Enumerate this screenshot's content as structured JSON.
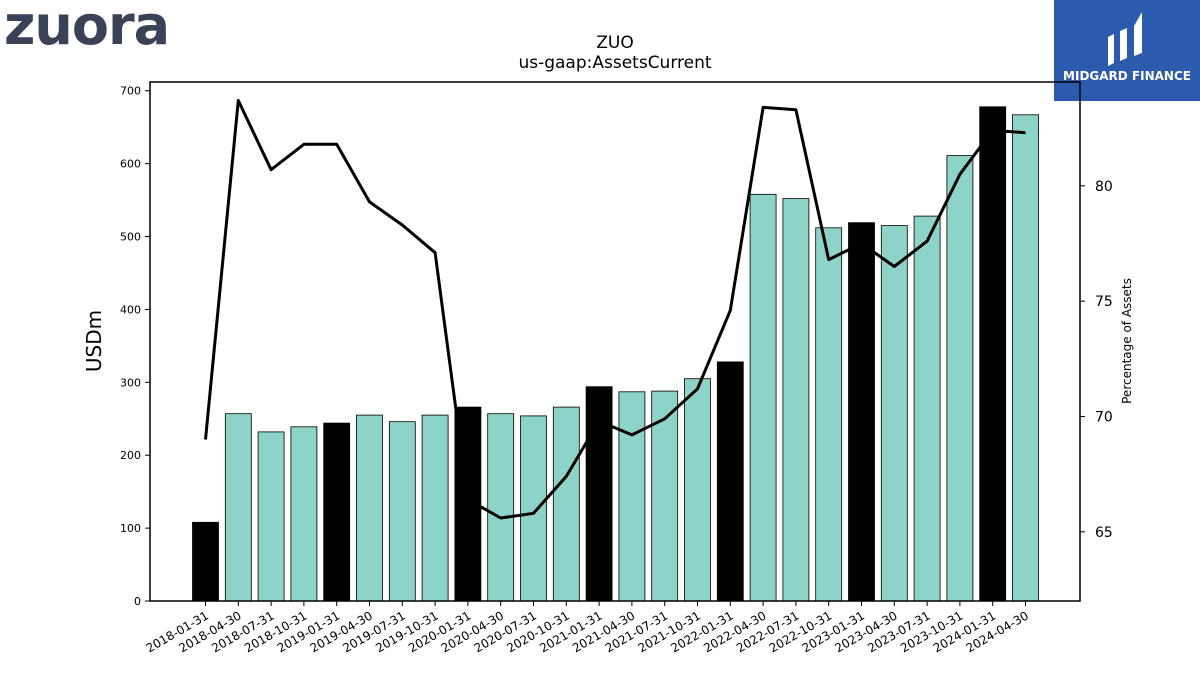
{
  "header": {
    "company_logo": "zuora",
    "brand_badge": "MIDGARD FINANCE"
  },
  "chart_data": {
    "type": "bar",
    "title": "ZUO",
    "subtitle": "us-gaap:AssetsCurrent",
    "ylabel": "USDm",
    "y2label": "Percentage of Assets",
    "ylim": [
      0,
      712
    ],
    "y2lim": [
      62.0,
      84.5
    ],
    "yticks": [
      0,
      100,
      200,
      300,
      400,
      500,
      600,
      700
    ],
    "y2ticks": [
      65,
      70,
      75,
      80
    ],
    "grid": false,
    "colors": {
      "bar": "#8dd3c7",
      "bar_fiscal_year_end": "#000000",
      "line": "#000000"
    },
    "categories": [
      "2018-01-31",
      "2018-04-30",
      "2018-07-31",
      "2018-10-31",
      "2019-01-31",
      "2019-04-30",
      "2019-07-31",
      "2019-10-31",
      "2020-01-31",
      "2020-04-30",
      "2020-07-31",
      "2020-10-31",
      "2021-01-31",
      "2021-04-30",
      "2021-07-31",
      "2021-10-31",
      "2022-01-31",
      "2022-04-30",
      "2022-07-31",
      "2022-10-31",
      "2023-01-31",
      "2023-04-30",
      "2023-07-31",
      "2023-10-31",
      "2024-01-31",
      "2024-04-30"
    ],
    "series": [
      {
        "kind": "bar",
        "axis": "left",
        "values": [
          108,
          257,
          232,
          239,
          244,
          255,
          246,
          255,
          266,
          257,
          254,
          266,
          294,
          287,
          288,
          305,
          328,
          558,
          552,
          512,
          519,
          515,
          528,
          611,
          678,
          667
        ],
        "highlight": [
          true,
          false,
          false,
          false,
          true,
          false,
          false,
          false,
          true,
          false,
          false,
          false,
          true,
          false,
          false,
          false,
          true,
          false,
          false,
          false,
          true,
          false,
          false,
          false,
          true,
          false
        ]
      },
      {
        "kind": "line",
        "axis": "right",
        "values": [
          69.0,
          83.7,
          80.7,
          81.8,
          81.8,
          79.3,
          78.3,
          77.1,
          66.4,
          65.6,
          65.8,
          67.4,
          69.8,
          69.2,
          69.9,
          71.2,
          74.6,
          83.4,
          83.3,
          76.8,
          77.5,
          76.5,
          77.6,
          80.5,
          82.4,
          82.3
        ]
      }
    ]
  }
}
